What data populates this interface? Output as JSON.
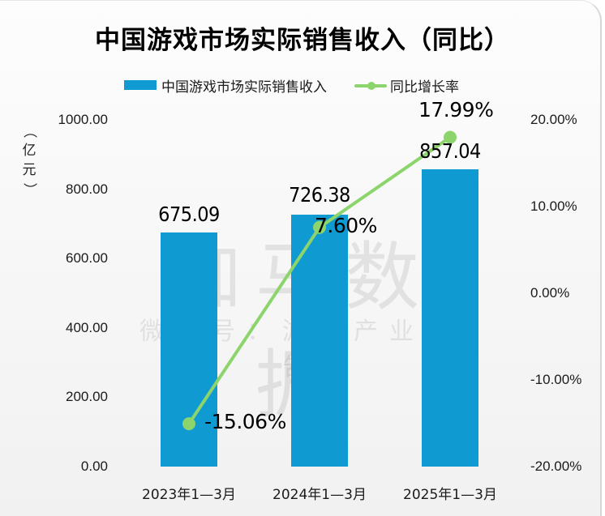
{
  "chart_data": {
    "type": "bar+line",
    "title": "中国游戏市场实际销售收入（同比）",
    "categories": [
      "2023年1—3月",
      "2024年1—3月",
      "2025年1—3月"
    ],
    "series": [
      {
        "name": "中国游戏市场实际销售收入",
        "type": "bar",
        "axis": "left",
        "values": [
          675.09,
          726.38,
          857.04
        ],
        "labels": [
          "675.09",
          "726.38",
          "857.04"
        ],
        "color": "#0f9bd2"
      },
      {
        "name": "同比增长率",
        "type": "line",
        "axis": "right",
        "values": [
          -15.06,
          7.6,
          17.99
        ],
        "labels": [
          "-15.06%",
          "7.60%",
          "17.99%"
        ],
        "color": "#8cd46c"
      }
    ],
    "xlabel": "",
    "ylabel": "（亿元）",
    "ylim": [
      0,
      1000
    ],
    "y2lim": [
      -20,
      20
    ],
    "yticks": [
      "1000.00",
      "800.00",
      "600.00",
      "400.00",
      "200.00",
      "0.00"
    ],
    "y2ticks": [
      "20.00%",
      "10.00%",
      "0.00%",
      "-10.00%",
      "-20.00%"
    ],
    "grid": false,
    "legend_position": "top"
  },
  "title": "中国游戏市场实际销售收入（同比）",
  "legend": {
    "bar_label": "中国游戏市场实际销售收入",
    "line_label": "同比增长率"
  },
  "axis": {
    "ylabel_open": "（",
    "ylabel_chars": [
      "亿",
      "元"
    ],
    "ylabel_close": "）"
  },
  "watermark": {
    "main": "伽马数据",
    "sub": "微信号：游戏产业报告"
  },
  "colors": {
    "bar": "#0f9bd2",
    "line": "#8cd46c"
  }
}
